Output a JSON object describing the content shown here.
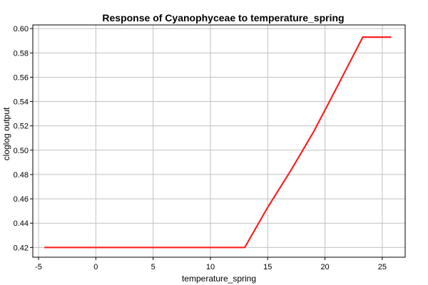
{
  "chart_data": {
    "type": "line",
    "title": "Response of Cyanophyceae to temperature_spring",
    "xlabel": "temperature_spring",
    "ylabel": "cloglog output",
    "xlim": [
      -5.5,
      27
    ],
    "ylim": [
      0.412,
      0.603
    ],
    "x_ticks": [
      -5,
      0,
      5,
      10,
      15,
      20,
      25
    ],
    "x_tick_labels": [
      "-5",
      "0",
      "5",
      "10",
      "15",
      "20",
      "25"
    ],
    "y_ticks": [
      0.42,
      0.44,
      0.46,
      0.48,
      0.5,
      0.52,
      0.54,
      0.56,
      0.58,
      0.6
    ],
    "y_tick_labels": [
      "0.42",
      "0.44",
      "0.46",
      "0.48",
      "0.50",
      "0.52",
      "0.54",
      "0.56",
      "0.58",
      "0.60"
    ],
    "grid": true,
    "series": [
      {
        "color": "#ff2020",
        "x": [
          -4.5,
          13.0,
          13.6,
          15.0,
          17.0,
          19.0,
          21.0,
          23.3,
          25.8
        ],
        "y": [
          0.42,
          0.42,
          0.43,
          0.453,
          0.483,
          0.515,
          0.551,
          0.593,
          0.593
        ]
      }
    ]
  }
}
